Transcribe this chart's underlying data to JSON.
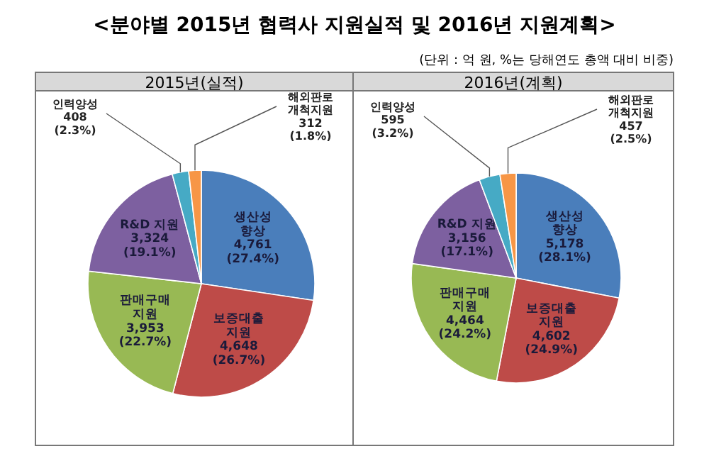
{
  "chart_data": [
    {
      "type": "pie",
      "title": "2015년(실적)",
      "annotations": [
        "<분야별 2015년 협력사 지원실적 및 2016년 지원계획>",
        "(단위 : 억 원, %는 당해연도 총액 대비 비중)"
      ],
      "categories": [
        "생산성\n향상",
        "보증대출\n지원",
        "판매구매\n지원",
        "R&D 지원",
        "인력양성",
        "해외판로\n개척지원"
      ],
      "values": [
        4761,
        4648,
        3953,
        3324,
        408,
        312
      ],
      "value_labels": [
        "4,761\n(27.4%)",
        "4,648\n(26.7%)",
        "3,953\n(22.7%)",
        "3,324\n(19.1%)",
        "408\n(2.3%)",
        "312\n(1.8%)"
      ],
      "colors": [
        "#4a7ebb",
        "#be4b48",
        "#98b954",
        "#7d60a0",
        "#46aac5",
        "#f79646"
      ]
    },
    {
      "type": "pie",
      "title": "2016년(계획)",
      "categories": [
        "생산성\n향상",
        "보증대출\n지원",
        "판매구매\n지원",
        "R&D 지원",
        "인력양성",
        "해외판로\n개척지원"
      ],
      "values": [
        5178,
        4602,
        4464,
        3156,
        595,
        457
      ],
      "value_labels": [
        "5,178\n(28.1%)",
        "4,602\n(24.9%)",
        "4,464\n(24.2%)",
        "3,156\n(17.1%)",
        "595\n(3.2%)",
        "457\n(2.5%)"
      ],
      "colors": [
        "#4a7ebb",
        "#be4b48",
        "#98b954",
        "#7d60a0",
        "#46aac5",
        "#f79646"
      ]
    }
  ]
}
